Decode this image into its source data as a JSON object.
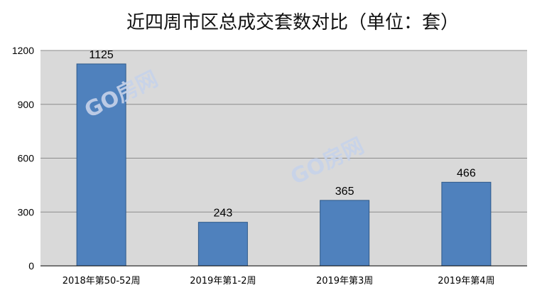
{
  "chart_data": {
    "type": "bar",
    "title": "近四周市区总成交套数对比（单位：套）",
    "categories": [
      "2018年第50-52周",
      "2019年第1-2周",
      "2019年第3周",
      "2019年第4周"
    ],
    "values": [
      1125,
      243,
      365,
      466
    ],
    "data_labels": [
      "1125",
      "243",
      "365",
      "466"
    ],
    "y_ticks": [
      0,
      300,
      600,
      900,
      1200
    ],
    "y_tick_labels": [
      "0",
      "300",
      "600",
      "900",
      "1200"
    ],
    "ylim": [
      0,
      1200
    ],
    "grid": true,
    "legend": "none",
    "colors": {
      "bar_fill": "#4f81bd",
      "bar_stroke": "#2f5a8a",
      "plot_background": "#d9d9d9",
      "grid": "#8c8c8c",
      "watermark": "#c7d3ea"
    }
  },
  "watermark": {
    "text": "GO房网",
    "count": 2
  }
}
